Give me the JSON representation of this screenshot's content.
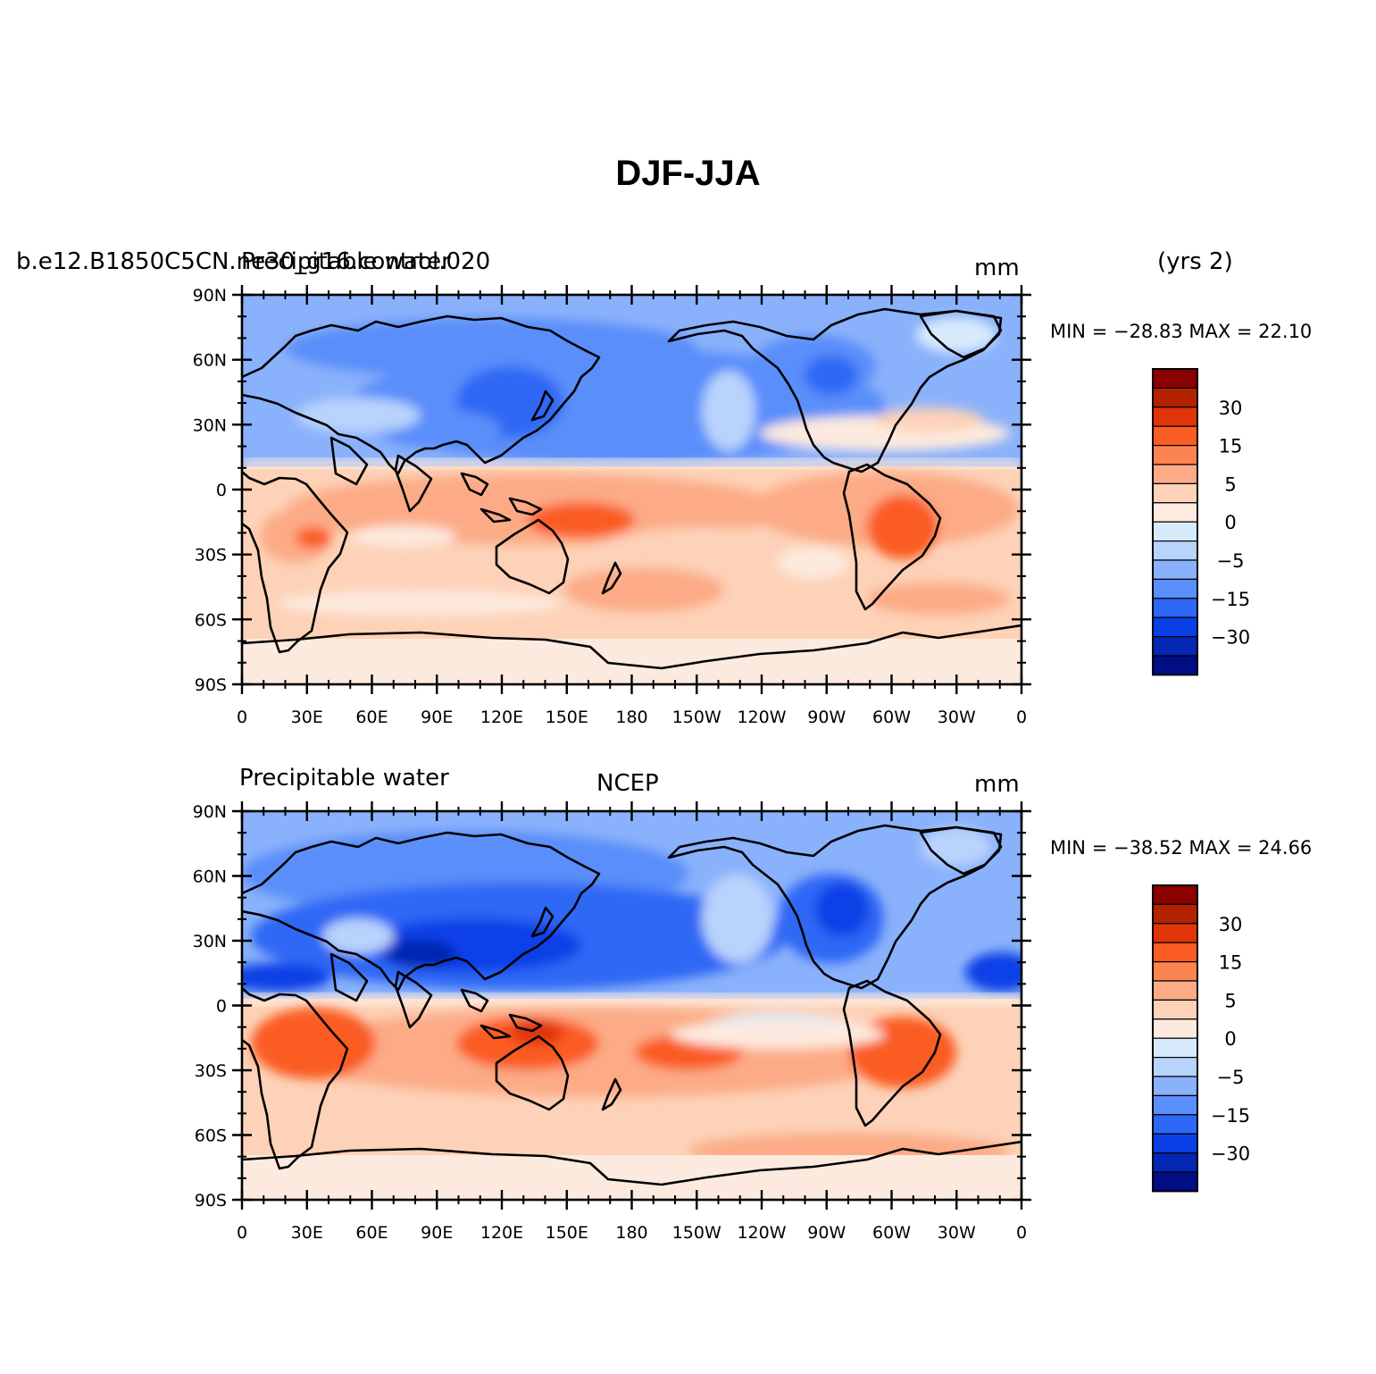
{
  "title": "DJF-JJA",
  "panels": [
    {
      "left_title": "b.e12.B1850C5CN.ne30_g16.control.020",
      "left_title_overlay": "Precipitable water",
      "center_title": "",
      "units": "mm",
      "years": "(yrs 2)",
      "stats": "MIN = −28.83 MAX =  22.10"
    },
    {
      "left_title": "Precipitable water",
      "left_title_overlay": "",
      "center_title": "NCEP",
      "units": "mm",
      "years": "",
      "stats": "MIN = −38.52 MAX =  24.66"
    }
  ],
  "axes": {
    "lat_ticks": [
      "90N",
      "60N",
      "30N",
      "0",
      "30S",
      "60S",
      "90S"
    ],
    "lon_ticks": [
      "0",
      "30E",
      "60E",
      "90E",
      "120E",
      "150E",
      "180",
      "150W",
      "120W",
      "90W",
      "60W",
      "30W",
      "0"
    ]
  },
  "colorbar": {
    "labels": [
      "30",
      "15",
      "5",
      "0",
      "−5",
      "−15",
      "−30"
    ],
    "colors": [
      "#8b0000",
      "#b22200",
      "#e03508",
      "#fb5c23",
      "#fc8450",
      "#fcab86",
      "#fdd2b8",
      "#fdeade",
      "#d7eafc",
      "#b8d3fc",
      "#8ab1fb",
      "#5a8efa",
      "#2d67f5",
      "#0a3fe6",
      "#0426b3",
      "#000d85"
    ]
  },
  "chart_data": {
    "type": "heatmap",
    "title": "DJF-JJA",
    "xlabel": "",
    "ylabel": "",
    "x_ticks": [
      "0",
      "30E",
      "60E",
      "90E",
      "120E",
      "150E",
      "180",
      "150W",
      "120W",
      "90W",
      "60W",
      "30W",
      "0"
    ],
    "y_ticks": [
      "90N",
      "60N",
      "30N",
      "0",
      "30S",
      "60S",
      "90S"
    ],
    "contour_levels": [
      -40,
      -35,
      -30,
      -25,
      -20,
      -15,
      -10,
      -5,
      0,
      5,
      10,
      15,
      20,
      25,
      30,
      35
    ],
    "units": "mm",
    "series": [
      {
        "name": "b.e12.B1850C5CN.ne30_g16.control.020",
        "min": -28.83,
        "max": 22.1
      },
      {
        "name": "NCEP",
        "min": -38.52,
        "max": 24.66
      }
    ],
    "pattern": "negative (blue) in Northern Hemisphere, positive (orange/red) in Southern Hemisphere"
  }
}
